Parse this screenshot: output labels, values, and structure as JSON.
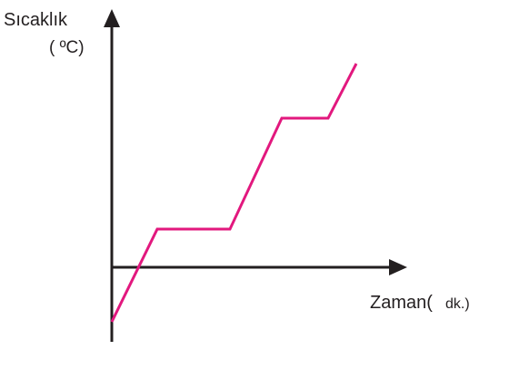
{
  "y_axis": {
    "label": "Sıcaklık",
    "unit": "( ºC)"
  },
  "x_axis": {
    "label": "Zaman(",
    "unit": "dk.)"
  }
}
